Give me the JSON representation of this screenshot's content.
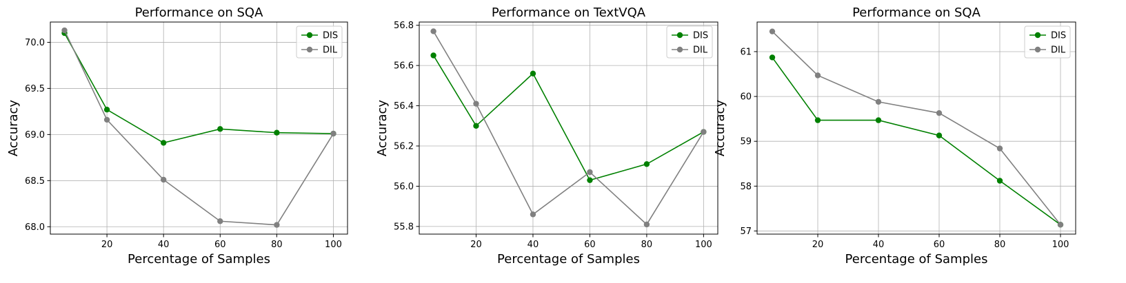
{
  "colors": {
    "DIS": "#008000",
    "DIL": "#808080",
    "grid": "#b0b0b0",
    "axes": "#000000"
  },
  "chart_data": [
    {
      "type": "line",
      "title": "Performance on SQA",
      "xlabel": "Percentage of Samples",
      "ylabel": "Accuracy",
      "x": [
        5,
        20,
        40,
        60,
        80,
        100
      ],
      "xticks": [
        20,
        40,
        60,
        80,
        100
      ],
      "xlim": [
        0,
        105
      ],
      "ylim": [
        67.92,
        70.22
      ],
      "yticks": [
        68.0,
        68.5,
        69.0,
        69.5,
        70.0
      ],
      "ytick_labels": [
        "68.0",
        "68.5",
        "69.0",
        "69.5",
        "70.0"
      ],
      "grid": true,
      "legend_position": "top-right",
      "series": [
        {
          "name": "DIS",
          "color": "#008000",
          "values": [
            70.1,
            69.27,
            68.91,
            69.06,
            69.02,
            69.01
          ]
        },
        {
          "name": "DIL",
          "color": "#808080",
          "values": [
            70.13,
            69.16,
            68.51,
            68.06,
            68.02,
            69.01
          ]
        }
      ]
    },
    {
      "type": "line",
      "title": "Performance on TextVQA",
      "xlabel": "Percentage of Samples",
      "ylabel": "Accuracy",
      "x": [
        5,
        20,
        40,
        60,
        80,
        100
      ],
      "xticks": [
        20,
        40,
        60,
        80,
        100
      ],
      "xlim": [
        0,
        105
      ],
      "ylim": [
        55.762,
        56.816
      ],
      "yticks": [
        55.8,
        56.0,
        56.2,
        56.4,
        56.6,
        56.8
      ],
      "ytick_labels": [
        "55.8",
        "56.0",
        "56.2",
        "56.4",
        "56.6",
        "56.8"
      ],
      "grid": true,
      "legend_position": "top-right",
      "series": [
        {
          "name": "DIS",
          "color": "#008000",
          "values": [
            56.65,
            56.3,
            56.56,
            56.03,
            56.11,
            56.27
          ]
        },
        {
          "name": "DIL",
          "color": "#808080",
          "values": [
            56.77,
            56.41,
            55.86,
            56.07,
            55.81,
            56.27
          ]
        }
      ]
    },
    {
      "type": "line",
      "title": "Performance on SQA",
      "xlabel": "Percentage of Samples",
      "ylabel": "Accuracy",
      "x": [
        5,
        20,
        40,
        60,
        80,
        100
      ],
      "xticks": [
        20,
        40,
        60,
        80,
        100
      ],
      "xlim": [
        0,
        105
      ],
      "ylim": [
        56.93,
        61.66
      ],
      "yticks": [
        57,
        58,
        59,
        60,
        61
      ],
      "ytick_labels": [
        "57",
        "58",
        "59",
        "60",
        "61"
      ],
      "grid": true,
      "legend_position": "top-right",
      "series": [
        {
          "name": "DIS",
          "color": "#008000",
          "values": [
            60.87,
            59.47,
            59.47,
            59.13,
            58.12,
            57.14
          ]
        },
        {
          "name": "DIL",
          "color": "#808080",
          "values": [
            61.45,
            60.47,
            59.88,
            59.63,
            58.84,
            57.14
          ]
        }
      ]
    }
  ]
}
